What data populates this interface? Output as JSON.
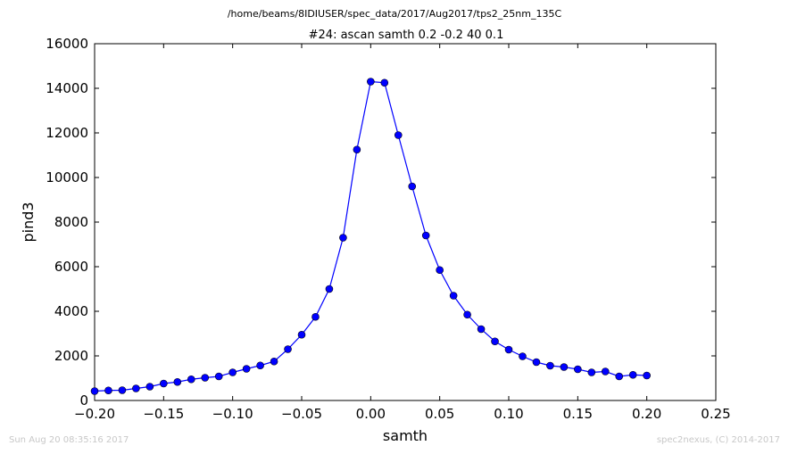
{
  "chart_data": {
    "type": "line",
    "file_path": "/home/beams/8IDIUSER/spec_data/2017/Aug2017/tps2_25nm_135C",
    "title": "#24: ascan  samth 0.2 -0.2  40 0.1",
    "xlabel": "samth",
    "ylabel": "pind3",
    "xlim": [
      -0.2,
      0.25
    ],
    "ylim": [
      0,
      16000
    ],
    "xticks": [
      -0.2,
      -0.15,
      -0.1,
      -0.05,
      0.0,
      0.05,
      0.1,
      0.15,
      0.2,
      0.25
    ],
    "xtick_labels": [
      "−0.20",
      "−0.15",
      "−0.10",
      "−0.05",
      "0.00",
      "0.05",
      "0.10",
      "0.15",
      "0.20",
      "0.25"
    ],
    "yticks": [
      0,
      2000,
      4000,
      6000,
      8000,
      10000,
      12000,
      14000,
      16000
    ],
    "ytick_labels": [
      "0",
      "2000",
      "4000",
      "6000",
      "8000",
      "10000",
      "12000",
      "14000",
      "16000"
    ],
    "grid": false,
    "color": "#0000ff",
    "x": [
      -0.2,
      -0.19,
      -0.18,
      -0.17,
      -0.16,
      -0.15,
      -0.14,
      -0.13,
      -0.12,
      -0.11,
      -0.1,
      -0.09,
      -0.08,
      -0.07,
      -0.06,
      -0.05,
      -0.04,
      -0.03,
      -0.02,
      -0.01,
      0.0,
      0.01,
      0.02,
      0.03,
      0.04,
      0.05,
      0.06,
      0.07,
      0.08,
      0.09,
      0.1,
      0.11,
      0.12,
      0.13,
      0.14,
      0.15,
      0.16,
      0.17,
      0.18,
      0.19,
      0.2
    ],
    "y": [
      420,
      450,
      460,
      540,
      620,
      760,
      830,
      950,
      1020,
      1080,
      1260,
      1420,
      1570,
      1750,
      2300,
      2950,
      3750,
      5000,
      7300,
      11250,
      14300,
      14250,
      11900,
      9600,
      7400,
      5850,
      4700,
      3850,
      3200,
      2650,
      2280,
      1980,
      1720,
      1560,
      1500,
      1400,
      1260,
      1300,
      1080,
      1150,
      1120
    ]
  },
  "footer": {
    "timestamp": "Sun Aug 20 08:35:16 2017",
    "credit": "spec2nexus, (C) 2014-2017"
  }
}
